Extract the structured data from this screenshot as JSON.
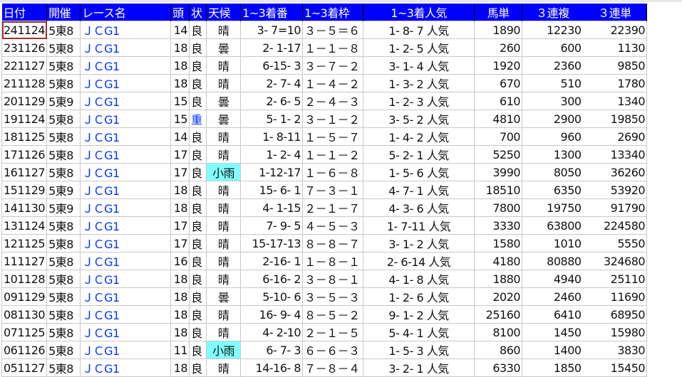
{
  "colors": {
    "header_bg": "#0000ff",
    "header_text": "#ffffff",
    "race_name": "#0033ff",
    "heavy_track": "#0033ff",
    "rain_highlight": "#80ffff",
    "selected_border": "#a03030"
  },
  "headers": [
    "日付",
    "開催",
    "レース名",
    "頭",
    "状",
    "天候",
    "1~3着番",
    "1~3着枠",
    "1~3着人気",
    "馬単",
    "３連複",
    "３連単"
  ],
  "rows": [
    [
      "241124",
      "5東8",
      "ＪＣG1",
      "14",
      "良",
      "晴",
      "3- 7=10",
      "３－５＝６",
      "1- 8- 7 人気",
      "1890",
      "12230",
      "22390"
    ],
    [
      "231126",
      "5東8",
      "ＪＣG1",
      "18",
      "良",
      "曇",
      "2- 1-17",
      "１－１－８",
      "1- 2- 5 人気",
      "260",
      "600",
      "1130"
    ],
    [
      "221127",
      "5東8",
      "ＪＣG1",
      "18",
      "良",
      "晴",
      "6-15- 3",
      "３－７－２",
      "3- 1- 4 人気",
      "1920",
      "2360",
      "9850"
    ],
    [
      "211128",
      "5東8",
      "ＪＣG1",
      "18",
      "良",
      "晴",
      "2- 7- 4",
      "１－４－２",
      "1- 3- 2 人気",
      "670",
      "510",
      "1780"
    ],
    [
      "201129",
      "5東9",
      "ＪＣG1",
      "15",
      "良",
      "曇",
      "2- 6- 5",
      "２－４－３",
      "1- 2- 3 人気",
      "610",
      "300",
      "1340"
    ],
    [
      "191124",
      "5東8",
      "ＪＣG1",
      "15",
      "重",
      "曇",
      "5- 1- 2",
      "３－１－２",
      "3- 5- 2 人気",
      "4810",
      "2900",
      "19850"
    ],
    [
      "181125",
      "5東8",
      "ＪＣG1",
      "14",
      "良",
      "晴",
      "1- 8-11",
      "１－５－７",
      "1- 4- 2 人気",
      "700",
      "960",
      "2690"
    ],
    [
      "171126",
      "5東8",
      "ＪＣG1",
      "17",
      "良",
      "晴",
      "1- 2- 4",
      "１－１－２",
      "5- 2- 1 人気",
      "5250",
      "1300",
      "13340"
    ],
    [
      "161127",
      "5東8",
      "ＪＣG1",
      "17",
      "良",
      "小雨",
      "1-12-17",
      "１－６－８",
      "1- 5- 6 人気",
      "3990",
      "8050",
      "36260"
    ],
    [
      "151129",
      "5東9",
      "ＪＣG1",
      "18",
      "良",
      "晴",
      "15- 6- 1",
      "７－３－１",
      "4- 7- 1 人気",
      "18510",
      "6350",
      "53920"
    ],
    [
      "141130",
      "5東9",
      "ＪＣG1",
      "18",
      "良",
      "晴",
      "4- 1-15",
      "２－１－７",
      "4- 3- 6 人気",
      "7800",
      "19750",
      "91790"
    ],
    [
      "131124",
      "5東8",
      "ＪＣG1",
      "17",
      "良",
      "晴",
      "7- 9- 5",
      "４－５－３",
      "1- 7-11 人気",
      "3330",
      "63800",
      "224580"
    ],
    [
      "121125",
      "5東8",
      "ＪＣG1",
      "17",
      "良",
      "晴",
      "15-17-13",
      "８－８－７",
      "3- 1- 2 人気",
      "1580",
      "1010",
      "5550"
    ],
    [
      "111127",
      "5東8",
      "ＪＣG1",
      "16",
      "良",
      "晴",
      "2-16- 1",
      "１－８－１",
      "2- 6-14 人気",
      "4180",
      "80880",
      "324680"
    ],
    [
      "101128",
      "5東8",
      "ＪＣG1",
      "18",
      "良",
      "晴",
      "6-16- 2",
      "３－８－１",
      "4- 1- 8 人気",
      "1880",
      "4940",
      "25110"
    ],
    [
      "091129",
      "5東8",
      "ＪＣG1",
      "18",
      "良",
      "曇",
      "5-10- 6",
      "３－５－３",
      "1- 2- 6 人気",
      "2020",
      "2460",
      "11690"
    ],
    [
      "081130",
      "5東8",
      "ＪＣG1",
      "18",
      "良",
      "晴",
      "16- 9- 4",
      "８－５－２",
      "9- 1- 2 人気",
      "25160",
      "6410",
      "68950"
    ],
    [
      "071125",
      "5東8",
      "ＪＣG1",
      "18",
      "良",
      "晴",
      "4- 2-10",
      "２－１－５",
      "5- 4- 1 人気",
      "8100",
      "1450",
      "15980"
    ],
    [
      "061126",
      "5東8",
      "ＪＣG1",
      "11",
      "良",
      "小雨",
      "6- 7- 3",
      "６－６－３",
      "1- 5- 3 人気",
      "860",
      "1400",
      "3830"
    ],
    [
      "051127",
      "5東8",
      "ＪＣG1",
      "18",
      "良",
      "晴",
      "14-16- 8",
      "７－８－４",
      "3- 2- 1 人気",
      "6330",
      "1850",
      "15450"
    ]
  ]
}
